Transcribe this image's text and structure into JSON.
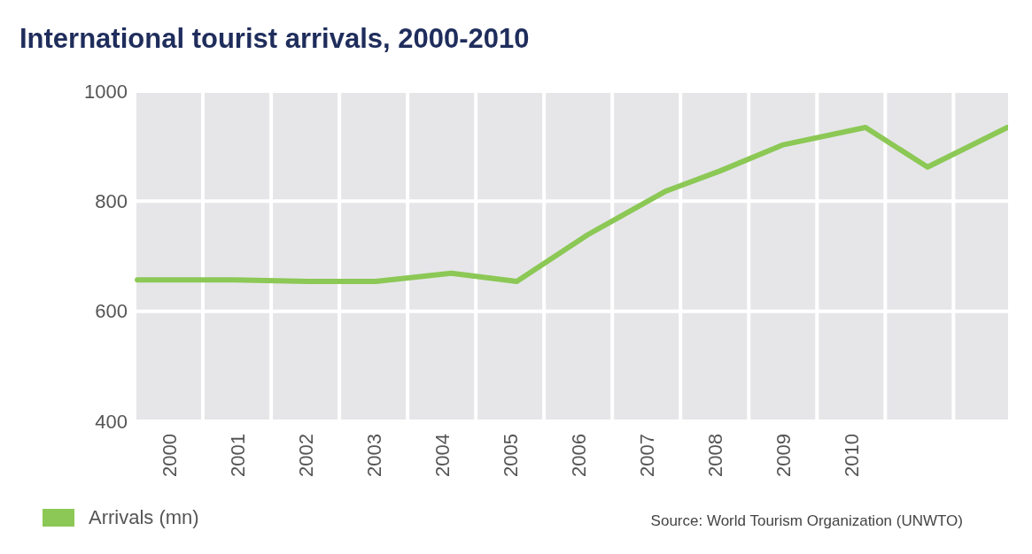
{
  "chart_data": {
    "type": "line",
    "title": "International tourist arrivals, 2000-2010",
    "x": [
      1999.54,
      2000.97,
      2002.05,
      2003.03,
      2004.14,
      2005.1,
      2006.14,
      2007.28,
      2008.08,
      2008.99,
      2010.21,
      2011.12,
      2012.29
    ],
    "series": [
      {
        "name": "Arrivals (mn)",
        "color": "#8cc855",
        "values": [
          657,
          657,
          654,
          654,
          669,
          654,
          739,
          818,
          855,
          902,
          934,
          862,
          934
        ]
      }
    ],
    "xlim": [
      1999.5,
      2012.3
    ],
    "xticks": [
      {
        "value": 1999.5,
        "label": null
      },
      2000,
      {
        "value": 2000.5,
        "label": null
      },
      2001,
      {
        "value": 2001.5,
        "label": null
      },
      2002,
      {
        "value": 2002.5,
        "label": null
      },
      2003,
      {
        "value": 2003.5,
        "label": null
      },
      2004,
      {
        "value": 2004.5,
        "label": null
      },
      2005,
      {
        "value": 2005.5,
        "label": null
      },
      2006,
      {
        "value": 2006.5,
        "label": null
      },
      2007,
      {
        "value": 2007.5,
        "label": null
      },
      2008,
      {
        "value": 2008.5,
        "label": null
      },
      2009,
      {
        "value": 2009.5,
        "label": null
      },
      2010,
      {
        "value": 2010.5,
        "label": null
      },
      {
        "value": 2011.5,
        "label": null
      }
    ],
    "ylim": [
      400,
      1000
    ],
    "yticks": [
      400,
      600,
      800,
      1000
    ],
    "grid": true,
    "legend": "bottom left",
    "marker": "none",
    "line_style": "solid",
    "annotations": [
      "Source: World Tourism Organization (UNWTO)"
    ]
  }
}
